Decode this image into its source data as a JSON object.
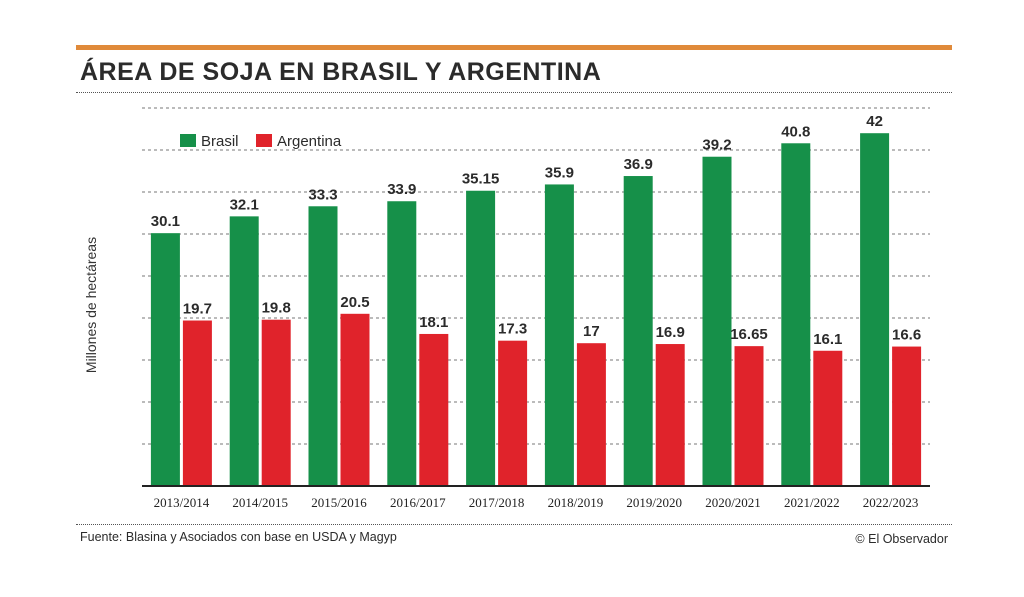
{
  "header": {
    "title": "ÁREA DE SOJA EN BRASIL Y ARGENTINA",
    "accent_color": "#e08a3a"
  },
  "footer": {
    "source": "Fuente: Blasina y Asociados con base en USDA y Magyp",
    "credit": "© El Observador"
  },
  "chart_data": {
    "type": "bar",
    "title": "ÁREA DE SOJA EN BRASIL Y ARGENTINA",
    "xlabel": "",
    "ylabel": "Millones de hectáreas",
    "ylim": [
      0,
      45
    ],
    "grid": true,
    "legend_position": "top-left",
    "categories": [
      "2013/2014",
      "2014/2015",
      "2015/2016",
      "2016/2017",
      "2017/2018",
      "2018/2019",
      "2019/2020",
      "2020/2021",
      "2021/2022",
      "2022/2023"
    ],
    "series": [
      {
        "name": "Brasil",
        "color": "#169049",
        "values": [
          30.1,
          32.1,
          33.3,
          33.9,
          35.15,
          35.9,
          36.9,
          39.2,
          40.8,
          42
        ],
        "labels": [
          "30.1",
          "32.1",
          "33.3",
          "33.9",
          "35.15",
          "35.9",
          "36.9",
          "39.2",
          "40.8",
          "42"
        ]
      },
      {
        "name": "Argentina",
        "color": "#e0232b",
        "values": [
          19.7,
          19.8,
          20.5,
          18.1,
          17.3,
          17,
          16.9,
          16.65,
          16.1,
          16.6
        ],
        "labels": [
          "19.7",
          "19.8",
          "20.5",
          "18.1",
          "17.3",
          "17",
          "16.9",
          "16.65",
          "16.1",
          "16.6"
        ]
      }
    ]
  }
}
